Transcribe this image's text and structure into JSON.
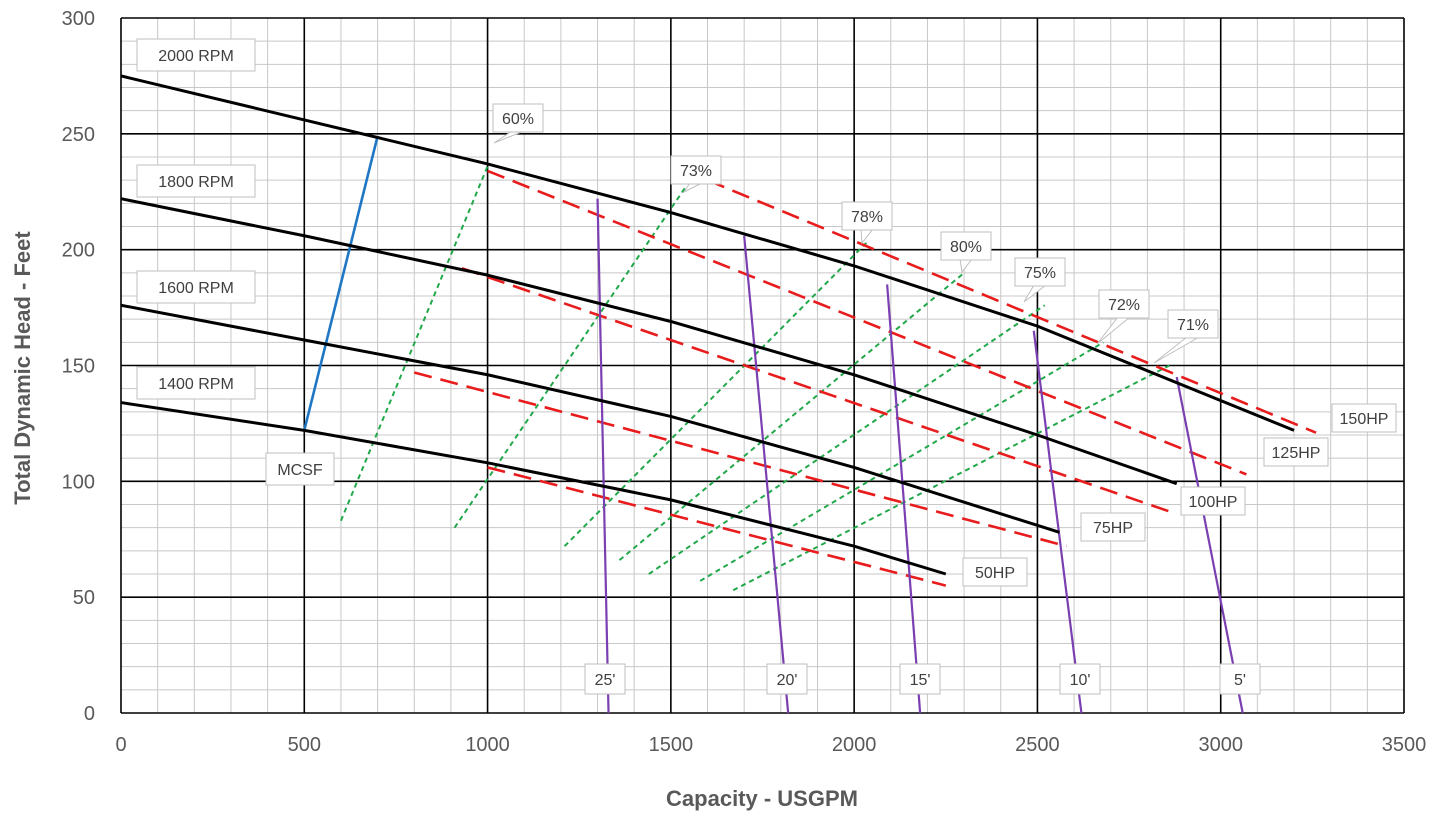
{
  "chart_data": {
    "type": "line",
    "title": "",
    "xlabel": "Capacity - USGPM",
    "ylabel": "Total Dynamic Head - Feet",
    "xlim": [
      0,
      3500
    ],
    "ylim": [
      0,
      300
    ],
    "x_major_ticks": [
      0,
      500,
      1000,
      1500,
      2000,
      2500,
      3000,
      3500
    ],
    "y_major_ticks": [
      0,
      50,
      100,
      150,
      200,
      250,
      300
    ],
    "x_minor_step": 100,
    "y_minor_step": 10,
    "grid": true,
    "legend": "none",
    "colors": {
      "rpm": "#000000",
      "horsepower": "#e81c1c",
      "efficiency": "#22a84a",
      "npsh": "#7a3fb0",
      "mcsf": "#1f77c4",
      "major_grid": "#000000",
      "minor_grid": "#c8c8c8"
    },
    "rpm_curves": [
      {
        "label": "2000 RPM",
        "x": [
          0,
          500,
          1000,
          1500,
          2000,
          2500,
          3200
        ],
        "y": [
          275,
          256,
          237,
          216,
          193,
          167,
          122
        ]
      },
      {
        "label": "1800 RPM",
        "x": [
          0,
          500,
          1000,
          1500,
          2000,
          2500,
          2880
        ],
        "y": [
          222,
          206,
          189,
          169,
          146,
          120,
          99
        ]
      },
      {
        "label": "1600 RPM",
        "x": [
          0,
          500,
          1000,
          1500,
          2000,
          2560
        ],
        "y": [
          176,
          161,
          146,
          128,
          106,
          78
        ]
      },
      {
        "label": "1400 RPM",
        "x": [
          0,
          500,
          1000,
          1500,
          2000,
          2250
        ],
        "y": [
          134,
          122,
          108,
          92,
          72,
          60
        ]
      }
    ],
    "horsepower_lines": [
      {
        "label": "150HP",
        "x": [
          1600,
          3260
        ],
        "y": [
          230,
          121
        ]
      },
      {
        "label": "125HP",
        "x": [
          1000,
          3070
        ],
        "y": [
          234,
          103
        ]
      },
      {
        "label": "100HP",
        "x": [
          930,
          2860
        ],
        "y": [
          192,
          87
        ]
      },
      {
        "label": "75HP",
        "x": [
          800,
          2580
        ],
        "y": [
          147,
          72
        ]
      },
      {
        "label": "50HP",
        "x": [
          1000,
          2250
        ],
        "y": [
          106,
          55
        ]
      }
    ],
    "efficiency_lines": [
      {
        "label": "60%",
        "x": [
          600,
          1000
        ],
        "y": [
          83,
          236
        ]
      },
      {
        "label": "73%",
        "x": [
          910,
          1540
        ],
        "y": [
          80,
          227
        ]
      },
      {
        "label": "78%",
        "x": [
          1210,
          2040
        ],
        "y": [
          72,
          204
        ]
      },
      {
        "label": "80%",
        "x": [
          1360,
          2300
        ],
        "y": [
          66,
          190
        ]
      },
      {
        "label": "75%",
        "x": [
          1440,
          2520
        ],
        "y": [
          60,
          176
        ]
      },
      {
        "label": "72%",
        "x": [
          1580,
          2680
        ],
        "y": [
          57,
          160
        ]
      },
      {
        "label": "71%",
        "x": [
          1670,
          2860
        ],
        "y": [
          53,
          150
        ]
      }
    ],
    "npsh_lines": [
      {
        "label": "25'",
        "x": [
          1300,
          1330
        ],
        "y": [
          222,
          0
        ]
      },
      {
        "label": "20'",
        "x": [
          1700,
          1820
        ],
        "y": [
          206,
          0
        ]
      },
      {
        "label": "15'",
        "x": [
          2090,
          2180
        ],
        "y": [
          185,
          0
        ]
      },
      {
        "label": "10'",
        "x": [
          2490,
          2620
        ],
        "y": [
          165,
          0
        ]
      },
      {
        "label": "5'",
        "x": [
          2880,
          3060
        ],
        "y": [
          145,
          0
        ]
      }
    ],
    "mcsf_line": {
      "label": "MCSF",
      "x": [
        500,
        700
      ],
      "y": [
        122,
        249
      ]
    }
  }
}
